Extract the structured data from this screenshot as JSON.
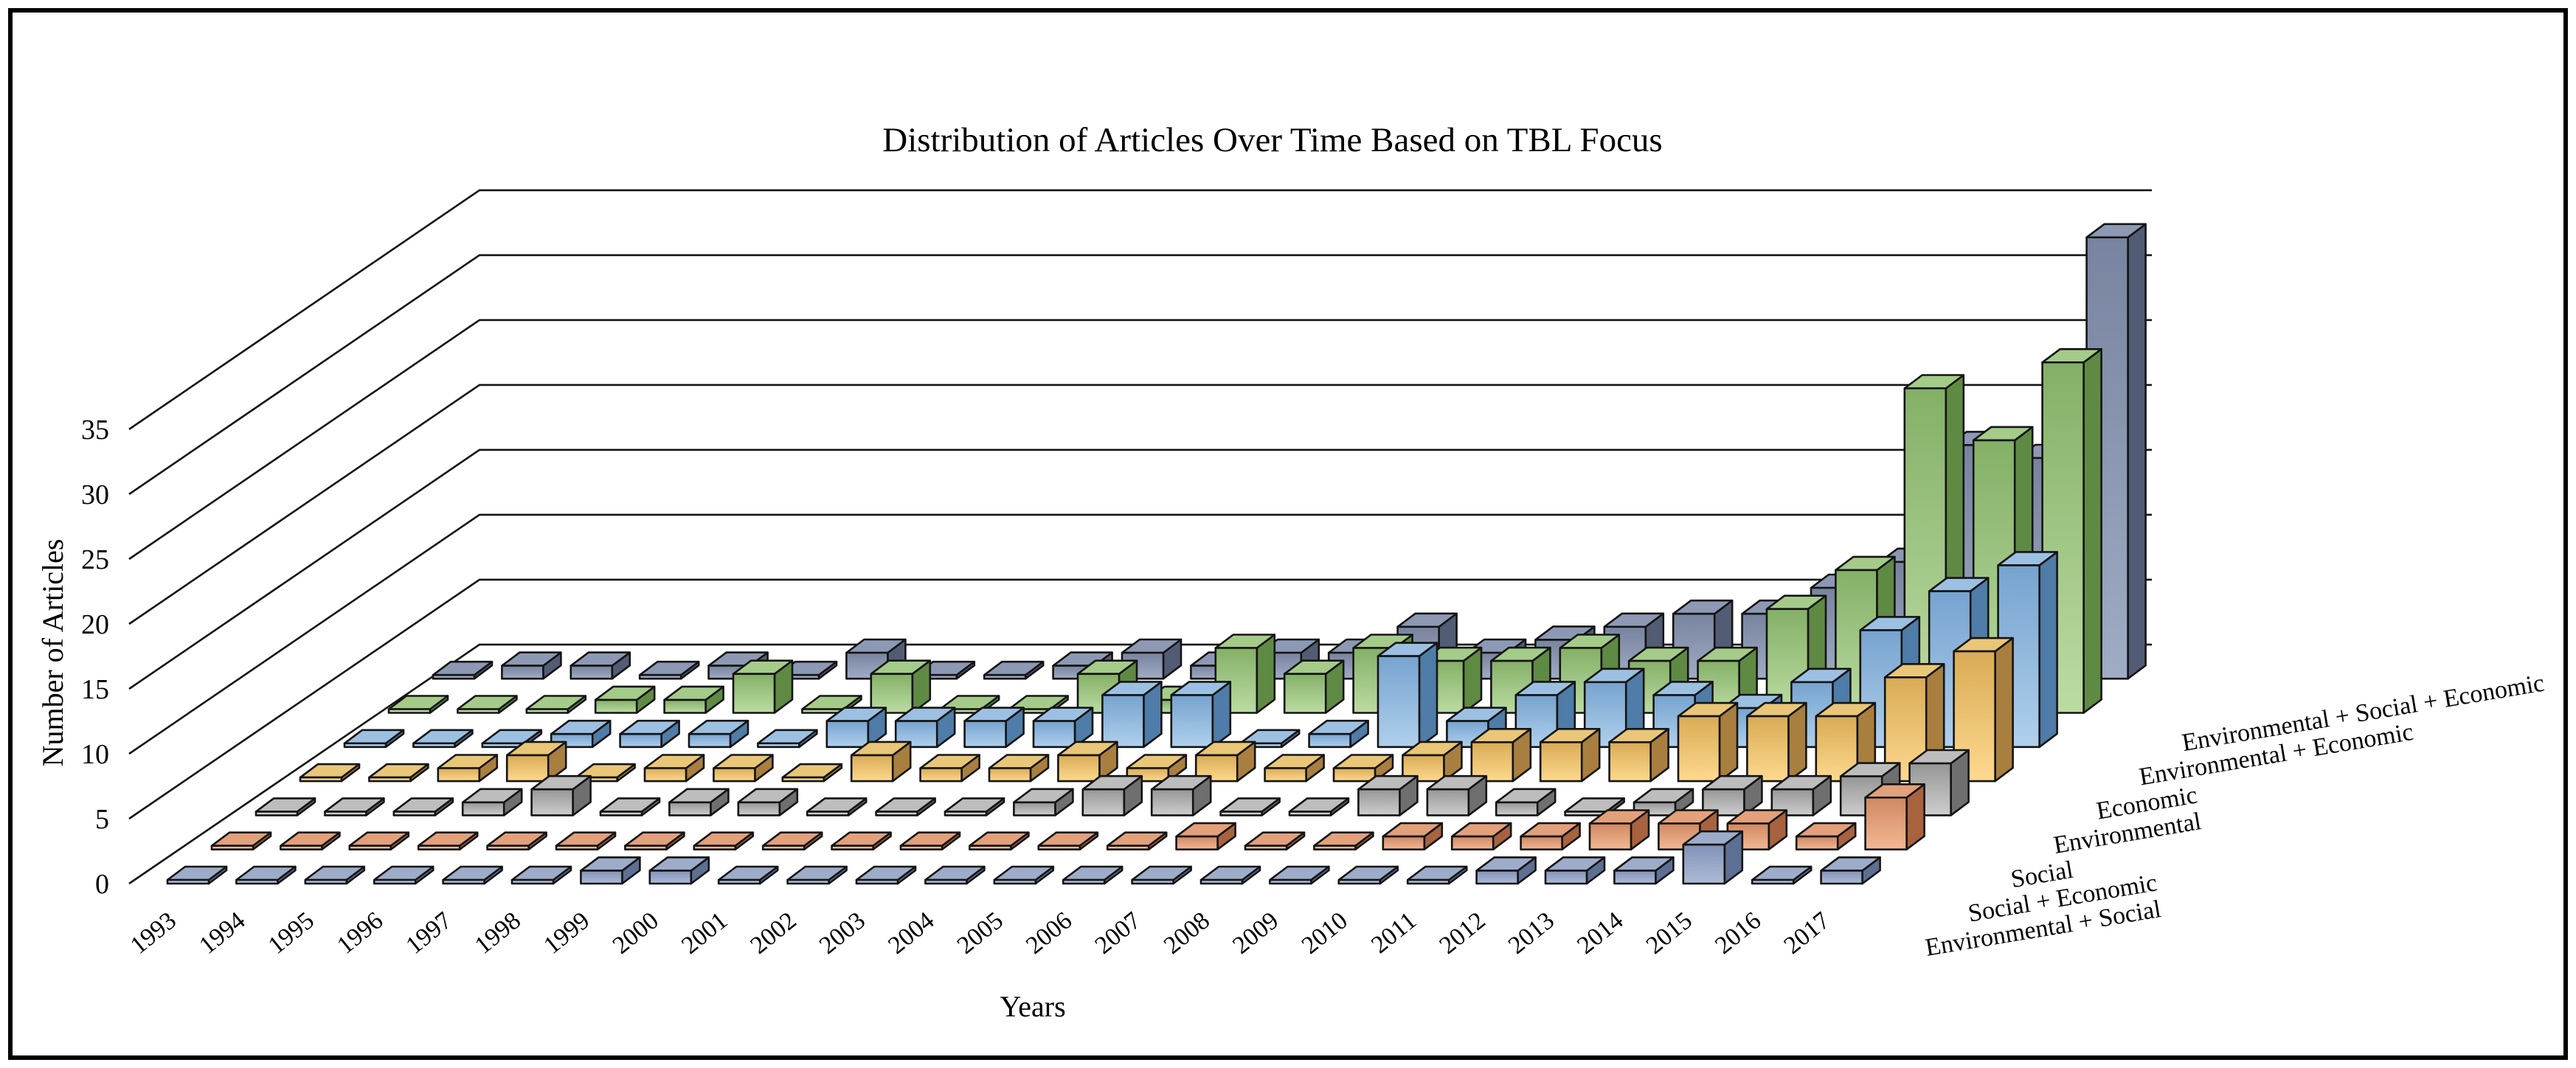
{
  "chart_data": {
    "type": "bar",
    "projection": "3d-column",
    "title": "Distribution of Articles Over Time Based on TBL Focus",
    "xlabel": "Years",
    "ylabel": "Number of Articles",
    "ylim": [
      0,
      40
    ],
    "y_ticks": [
      0,
      5,
      10,
      15,
      20,
      25,
      30,
      35
    ],
    "grid": true,
    "legend_position": "right-row-labels",
    "categories": [
      "1993",
      "1994",
      "1995",
      "1996",
      "1997",
      "1998",
      "1999",
      "2000",
      "2001",
      "2002",
      "2003",
      "2004",
      "2005",
      "2006",
      "2007",
      "2008",
      "2009",
      "2010",
      "2011",
      "2012",
      "2013",
      "2014",
      "2015",
      "2016",
      "2017"
    ],
    "series": [
      {
        "name": "Environmental + Social",
        "face": [
          "#8193b8",
          "#aebbd6"
        ],
        "top": "#9dacc9",
        "side": "#5e6f94",
        "values": [
          0,
          0,
          0,
          0,
          0,
          0,
          1,
          1,
          0,
          0,
          0,
          0,
          0,
          0,
          0,
          0,
          0,
          0,
          0,
          1,
          1,
          1,
          3,
          0,
          1
        ]
      },
      {
        "name": "Social + Economic",
        "face": [
          "#cf8861",
          "#f4b795"
        ],
        "top": "#e2a07b",
        "side": "#a8623f",
        "values": [
          0,
          0,
          0,
          0,
          0,
          0,
          0,
          0,
          0,
          0,
          0,
          0,
          0,
          0,
          1,
          0,
          0,
          1,
          1,
          1,
          2,
          2,
          2,
          1,
          4
        ]
      },
      {
        "name": "Social",
        "face": [
          "#969696",
          "#cdcdcd"
        ],
        "top": "#bdbdbd",
        "side": "#6f6f6f",
        "values": [
          0,
          0,
          0,
          1,
          2,
          0,
          1,
          1,
          0,
          0,
          0,
          1,
          2,
          2,
          0,
          0,
          2,
          2,
          1,
          0,
          1,
          2,
          2,
          3,
          4
        ]
      },
      {
        "name": "Environmental",
        "face": [
          "#d9ab55",
          "#fdd98f"
        ],
        "top": "#e9c678",
        "side": "#a97f3f",
        "values": [
          0,
          0,
          1,
          2,
          0,
          1,
          1,
          0,
          2,
          1,
          1,
          2,
          1,
          2,
          1,
          1,
          2,
          3,
          3,
          3,
          5,
          5,
          5,
          8,
          10
        ]
      },
      {
        "name": "Economic",
        "face": [
          "#76a3cf",
          "#b0d0ec"
        ],
        "top": "#9cc0e2",
        "side": "#4f7ca8",
        "values": [
          0,
          0,
          0,
          1,
          1,
          1,
          0,
          2,
          2,
          2,
          2,
          4,
          4,
          0,
          1,
          7,
          2,
          4,
          5,
          4,
          3,
          5,
          9,
          12,
          14
        ]
      },
      {
        "name": "Environmental + Economic",
        "face": [
          "#84b066",
          "#bcdca4"
        ],
        "top": "#a5cb89",
        "side": "#5f8a44",
        "values": [
          0,
          0,
          0,
          1,
          1,
          3,
          0,
          3,
          0,
          0,
          3,
          1,
          5,
          3,
          5,
          4,
          4,
          5,
          4,
          4,
          8,
          11,
          25,
          21,
          27
        ]
      },
      {
        "name": "Environmental + Social + Economic",
        "face": [
          "#78849f",
          "#a0acc4"
        ],
        "top": "#8d99b4",
        "side": "#525c74",
        "values": [
          0,
          1,
          1,
          0,
          1,
          0,
          2,
          0,
          0,
          1,
          2,
          1,
          2,
          2,
          4,
          2,
          3,
          4,
          5,
          5,
          7,
          9,
          18,
          17,
          34
        ]
      }
    ]
  }
}
